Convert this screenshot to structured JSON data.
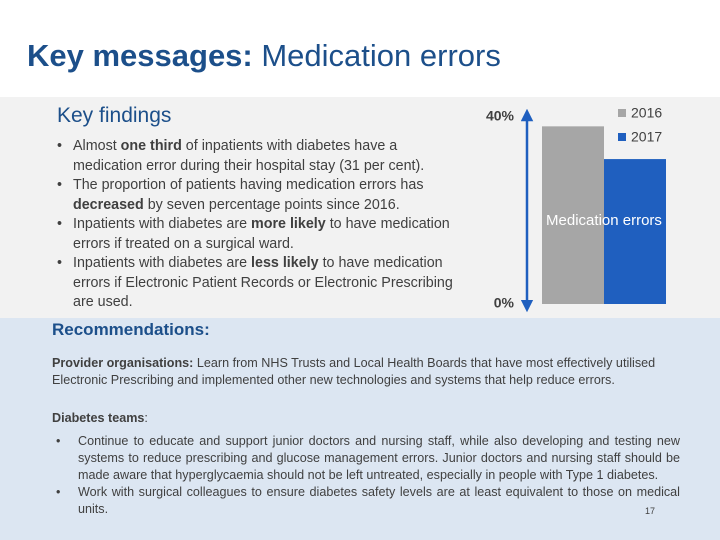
{
  "header": {
    "title_bold": "Key messages:",
    "title_rest": " Medication errors"
  },
  "findings": {
    "title": "Key findings",
    "items": [
      [
        "Almost ",
        "one third",
        " of inpatients with diabetes have a medication error during their hospital stay (31 per cent)."
      ],
      [
        "The proportion of patients having medication errors has ",
        "decreased",
        " by seven percentage points since 2016."
      ],
      [
        "Inpatients with diabetes are ",
        "more likely",
        " to have medication errors if treated on a surgical ward."
      ],
      [
        "Inpatients with diabetes are ",
        "less likely",
        " to have medication errors if Electronic Patient Records or Electronic Prescribing are used."
      ]
    ]
  },
  "chart_data": {
    "type": "bar",
    "categories": [
      "Medication errors"
    ],
    "series": [
      {
        "name": "2016",
        "color": "#a6a6a6",
        "values": [
          38
        ]
      },
      {
        "name": "2017",
        "color": "#1f5fbf",
        "values": [
          31
        ]
      }
    ],
    "ylim": [
      0,
      40
    ],
    "yticks": [
      {
        "value": 0,
        "label": "0%"
      },
      {
        "value": 40,
        "label": "40%"
      }
    ],
    "legend": "top-right"
  },
  "recommendations": {
    "title": "Recommendations:",
    "provider_label": "Provider organisations:",
    "provider_text": " Learn from NHS Trusts and Local Health Boards that have most effectively utilised Electronic Prescribing and implemented other new technologies and systems that help reduce errors.",
    "teams_label": "Diabetes teams",
    ":": ":",
    "teams_items": [
      "Continue to educate and support junior doctors and nursing staff, while also developing and testing new systems to reduce prescribing and glucose management errors. Junior doctors and nursing staff should be made aware that hyperglycaemia should not be left untreated, especially in people with Type 1 diabetes.",
      "Work with surgical colleagues to ensure diabetes safety levels are at least equivalent to those on medical units."
    ]
  },
  "page_number": "17"
}
